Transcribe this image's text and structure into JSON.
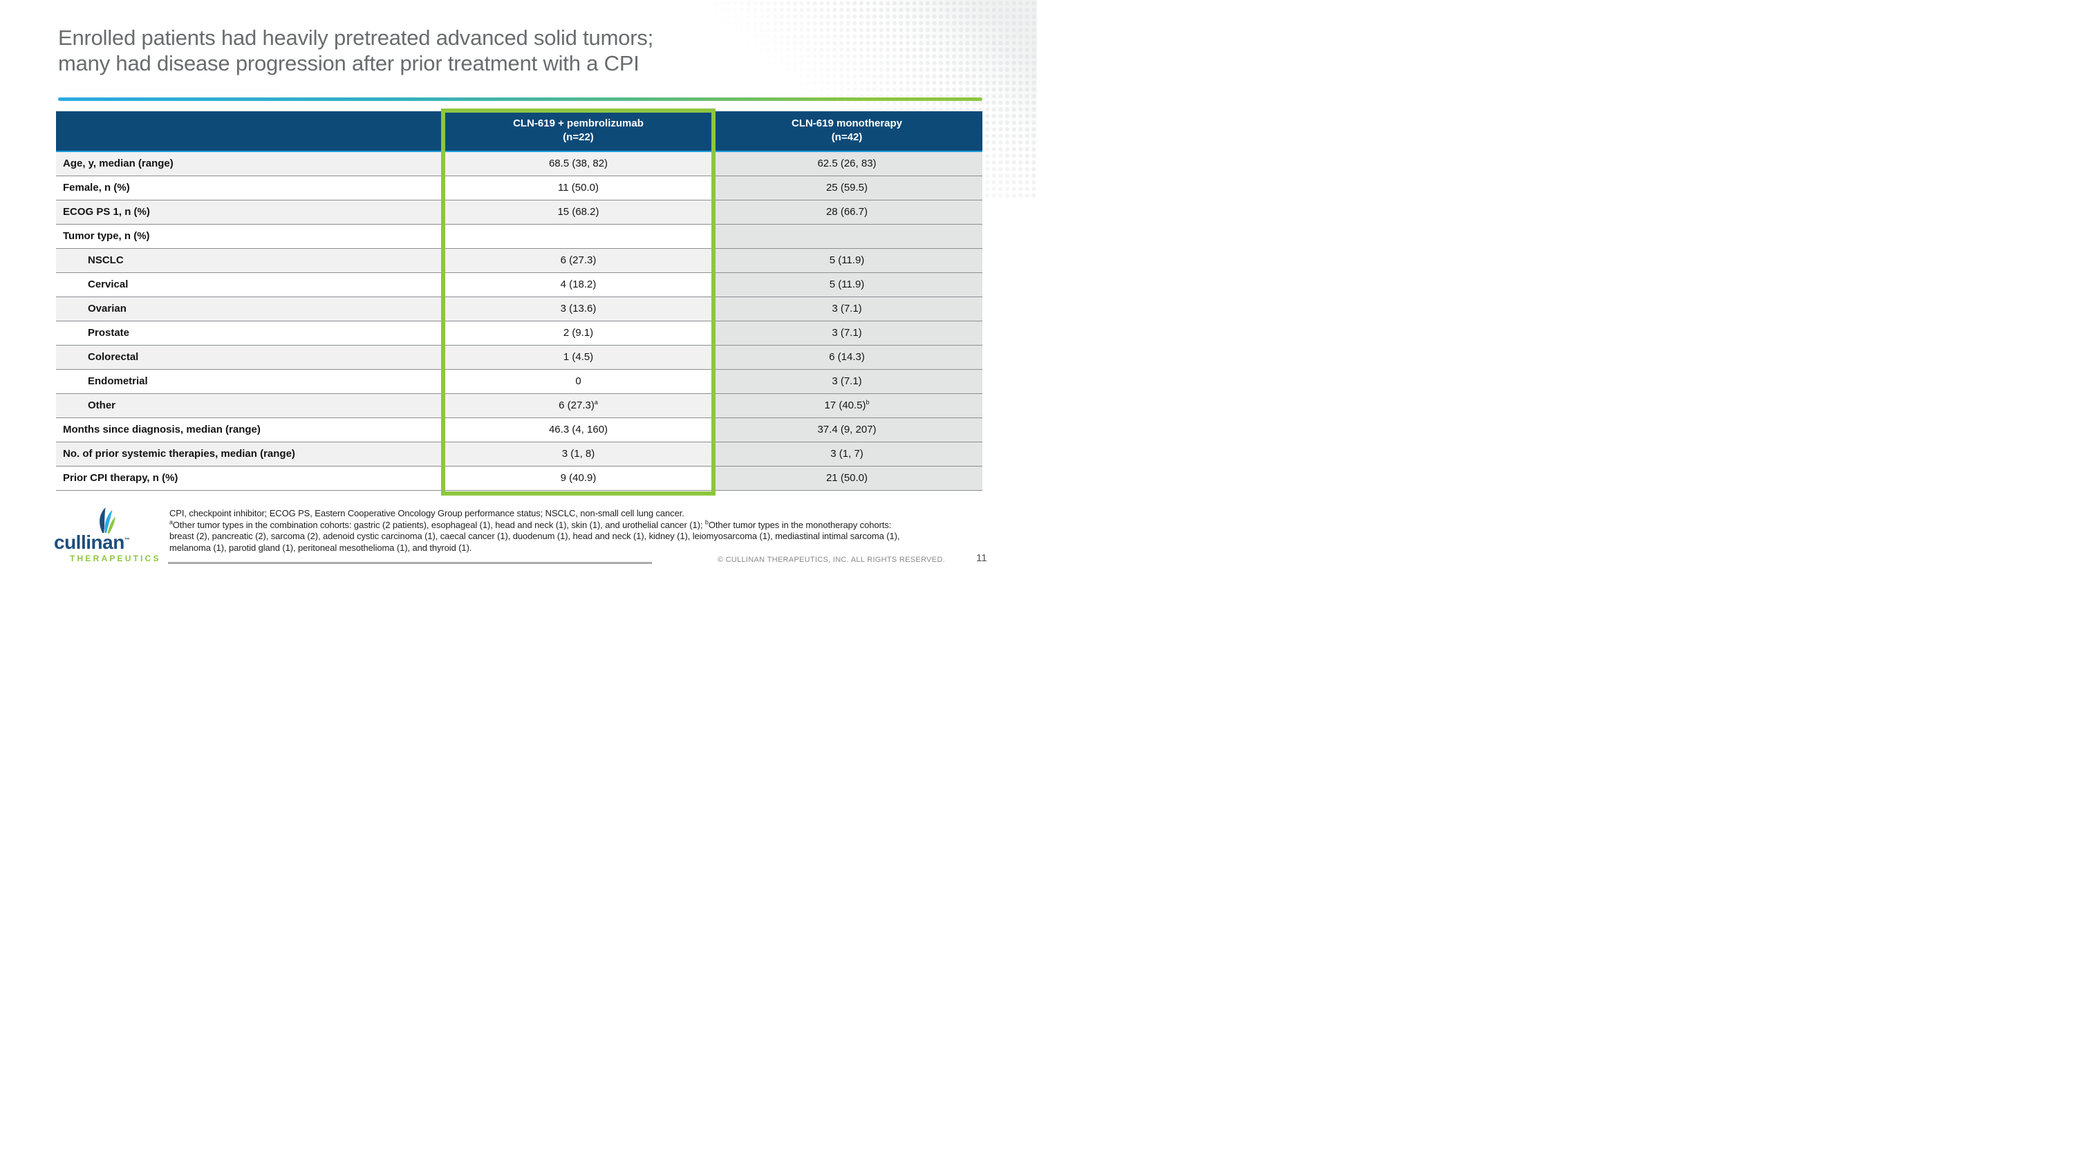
{
  "slide": {
    "title_line1": "Enrolled patients had heavily pretreated advanced solid tumors;",
    "title_line2": "many had disease progression after prior treatment with a CPI",
    "page_number": "11",
    "copyright": "© CULLINAN THERAPEUTICS, INC. ALL RIGHTS RESERVED."
  },
  "logo": {
    "name": "cullinan",
    "tm": "™",
    "subtitle": "THERAPEUTICS",
    "icon": "leaf-trio-icon"
  },
  "table": {
    "columns": [
      {
        "label_line1": "CLN-619 + pembrolizumab",
        "label_line2": "(n=22)",
        "highlighted": true
      },
      {
        "label_line1": "CLN-619 monotherapy",
        "label_line2": "(n=42)",
        "highlighted": false
      }
    ],
    "rows": [
      {
        "label": "Age, y, median (range)",
        "indent": false,
        "combo": "68.5 (38, 82)",
        "mono": "62.5 (26, 83)"
      },
      {
        "label": "Female, n (%)",
        "indent": false,
        "combo": "11 (50.0)",
        "mono": "25 (59.5)"
      },
      {
        "label": "ECOG PS 1, n (%)",
        "indent": false,
        "combo": "15 (68.2)",
        "mono": "28 (66.7)"
      },
      {
        "label": "Tumor type, n (%)",
        "indent": false,
        "combo": "",
        "mono": ""
      },
      {
        "label": "NSCLC",
        "indent": true,
        "combo": "6 (27.3)",
        "mono": "5 (11.9)"
      },
      {
        "label": "Cervical",
        "indent": true,
        "combo": "4 (18.2)",
        "mono": "5 (11.9)"
      },
      {
        "label": "Ovarian",
        "indent": true,
        "combo": "3 (13.6)",
        "mono": "3 (7.1)"
      },
      {
        "label": "Prostate",
        "indent": true,
        "combo": "2 (9.1)",
        "mono": "3 (7.1)"
      },
      {
        "label": "Colorectal",
        "indent": true,
        "combo": "1 (4.5)",
        "mono": "6 (14.3)"
      },
      {
        "label": "Endometrial",
        "indent": true,
        "combo": "0",
        "mono": "3 (7.1)"
      },
      {
        "label": "Other",
        "indent": true,
        "combo": "6 (27.3)",
        "combo_sup": "a",
        "mono": "17 (40.5)",
        "mono_sup": "b"
      },
      {
        "label": "Months since diagnosis, median (range)",
        "indent": false,
        "combo": "46.3 (4, 160)",
        "mono": "37.4 (9, 207)"
      },
      {
        "label": "No. of prior systemic therapies, median (range)",
        "indent": false,
        "combo": "3 (1, 8)",
        "mono": "3 (1, 7)"
      },
      {
        "label": "Prior CPI therapy, n (%)",
        "indent": false,
        "combo": "9 (40.9)",
        "mono": "21 (50.0)"
      }
    ]
  },
  "footnotes": {
    "lines": [
      [
        {
          "t": "CPI, checkpoint inhibitor; ECOG PS, Eastern Cooperative Oncology Group performance status; NSCLC, non-small cell lung cancer."
        }
      ],
      [
        {
          "s": true,
          "t": "a"
        },
        {
          "t": "Other tumor types in the combination cohorts: gastric (2 patients), esophageal (1), head and neck (1), skin (1), and urothelial cancer (1); "
        },
        {
          "s": true,
          "t": "b"
        },
        {
          "t": "Other tumor types in the monotherapy cohorts:"
        }
      ],
      [
        {
          "t": "breast (2), pancreatic (2), sarcoma (2), adenoid cystic carcinoma (1), caecal cancer (1), duodenum (1), head and neck (1), kidney (1), leiomyosarcoma (1), mediastinal intimal sarcoma (1),"
        }
      ],
      [
        {
          "t": "melanoma (1), parotid gland (1), peritoneal mesothelioma (1), and thyroid (1)."
        }
      ]
    ]
  },
  "colors": {
    "header_blue": "#0d4a78",
    "header_underline_blue": "#1b9cd8",
    "accent_green": "#8dc63f",
    "gradient_blue": "#29aae1",
    "title_grey": "#696b6d",
    "row_shade": "#f1f1f2",
    "mono_column_grey": "#e3e4e4",
    "logo_blue": "#1d4e7e",
    "logo_light_blue": "#29abe2"
  }
}
